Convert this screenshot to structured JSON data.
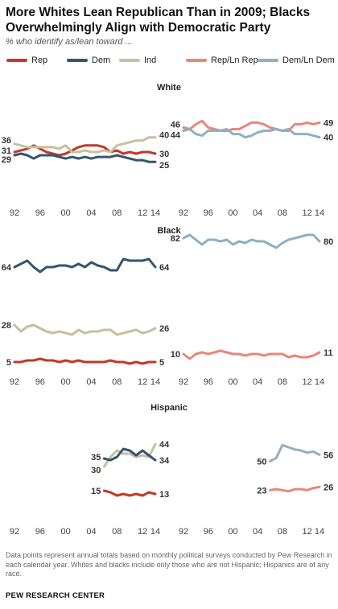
{
  "title": "More Whites Lean Republican Than in 2009; Blacks Overwhelmingly Align with Democratic Party",
  "subtitle": "% who identify as/lean toward ...",
  "note": "Data points represent annual totals based on monthly political surveys conducted by Pew Research in each calendar year. Whites and blacks include only those who are not Hispanic; Hispanics are of any race.",
  "source": "PEW RESEARCH CENTER",
  "colors": {
    "rep": "#c0392b",
    "dem": "#33566f",
    "ind": "#c9bf9f",
    "rep_ln": "#e8877b",
    "dem_ln": "#8fafc7"
  },
  "legend": [
    {
      "key": "rep",
      "label": "Rep"
    },
    {
      "key": "dem",
      "label": "Dem"
    },
    {
      "key": "ind",
      "label": "Ind"
    },
    {
      "key": "rep_ln",
      "label": "Rep/Ln Rep"
    },
    {
      "key": "dem_ln",
      "label": "Dem/Ln Dem"
    }
  ],
  "chart_data": [
    {
      "type": "line",
      "group": "White",
      "side": "left",
      "ylim": [
        0,
        60
      ],
      "x_ticks": [
        "92",
        "96",
        "00",
        "04",
        "08",
        "12",
        "14"
      ],
      "series": [
        {
          "key": "rep",
          "name": "Rep",
          "x": [
            1992,
            1993,
            1994,
            1995,
            1996,
            1997,
            1998,
            1999,
            2000,
            2001,
            2002,
            2003,
            2004,
            2005,
            2006,
            2007,
            2008,
            2009,
            2010,
            2011,
            2012,
            2013,
            2014
          ],
          "values": [
            31,
            32,
            33,
            35,
            33,
            31,
            30,
            29,
            30,
            32,
            34,
            35,
            35,
            35,
            34,
            31,
            32,
            30,
            31,
            30,
            31,
            31,
            30
          ],
          "start_label": "31",
          "end_label": "30"
        },
        {
          "key": "dem",
          "name": "Dem",
          "x": [
            1992,
            1993,
            1994,
            1995,
            1996,
            1997,
            1998,
            1999,
            2000,
            2001,
            2002,
            2003,
            2004,
            2005,
            2006,
            2007,
            2008,
            2009,
            2010,
            2011,
            2012,
            2013,
            2014
          ],
          "values": [
            29,
            30,
            29,
            27,
            29,
            29,
            29,
            28,
            27,
            28,
            27,
            28,
            27,
            28,
            28,
            28,
            29,
            28,
            27,
            26,
            26,
            25,
            25
          ],
          "start_label": "29",
          "end_label": "25"
        },
        {
          "key": "ind",
          "name": "Ind",
          "x": [
            1992,
            1993,
            1994,
            1995,
            1996,
            1997,
            1998,
            1999,
            2000,
            2001,
            2002,
            2003,
            2004,
            2005,
            2006,
            2007,
            2008,
            2009,
            2010,
            2011,
            2012,
            2013,
            2014
          ],
          "values": [
            36,
            35,
            34,
            34,
            34,
            34,
            34,
            33,
            35,
            31,
            31,
            32,
            31,
            31,
            32,
            31,
            35,
            36,
            37,
            38,
            38,
            40,
            40
          ],
          "start_label": "36",
          "end_label": "40"
        }
      ]
    },
    {
      "type": "line",
      "group": "White",
      "side": "right",
      "ylim": [
        0,
        60
      ],
      "x_ticks": [
        "92",
        "96",
        "00",
        "04",
        "08",
        "12",
        "14"
      ],
      "series": [
        {
          "key": "rep_ln",
          "name": "Rep/Ln Rep",
          "x": [
            1992,
            1993,
            1994,
            1995,
            1996,
            1997,
            1998,
            1999,
            2000,
            2001,
            2002,
            2003,
            2004,
            2005,
            2006,
            2007,
            2008,
            2009,
            2010,
            2011,
            2012,
            2013,
            2014
          ],
          "values": [
            46,
            45,
            48,
            50,
            46,
            45,
            44,
            44,
            45,
            45,
            47,
            49,
            49,
            48,
            46,
            45,
            44,
            44,
            48,
            48,
            49,
            48,
            49
          ],
          "start_label": "46",
          "end_label": "49"
        },
        {
          "key": "dem_ln",
          "name": "Dem/Ln Dem",
          "x": [
            1992,
            1993,
            1994,
            1995,
            1996,
            1997,
            1998,
            1999,
            2000,
            2001,
            2002,
            2003,
            2004,
            2005,
            2006,
            2007,
            2008,
            2009,
            2010,
            2011,
            2012,
            2013,
            2014
          ],
          "values": [
            44,
            45,
            42,
            41,
            44,
            44,
            44,
            45,
            42,
            42,
            40,
            41,
            43,
            44,
            44,
            45,
            44,
            45,
            42,
            42,
            42,
            41,
            40
          ],
          "start_label": "44",
          "end_label": "40"
        }
      ]
    },
    {
      "type": "line",
      "group": "Black",
      "side": "left",
      "ylim": [
        0,
        90
      ],
      "x_ticks": [
        "92",
        "96",
        "00",
        "04",
        "08",
        "12",
        "14"
      ],
      "series": [
        {
          "key": "dem",
          "name": "Dem",
          "x": [
            1992,
            1993,
            1994,
            1995,
            1996,
            1997,
            1998,
            1999,
            2000,
            2001,
            2002,
            2003,
            2004,
            2005,
            2006,
            2007,
            2008,
            2009,
            2010,
            2011,
            2012,
            2013,
            2014
          ],
          "values": [
            64,
            66,
            68,
            64,
            61,
            64,
            64,
            65,
            65,
            64,
            66,
            64,
            67,
            65,
            64,
            62,
            62,
            69,
            68,
            68,
            68,
            69,
            64
          ],
          "start_label": "64",
          "end_label": "64"
        },
        {
          "key": "ind",
          "name": "Ind",
          "x": [
            1992,
            1993,
            1994,
            1995,
            1996,
            1997,
            1998,
            1999,
            2000,
            2001,
            2002,
            2003,
            2004,
            2005,
            2006,
            2007,
            2008,
            2009,
            2010,
            2011,
            2012,
            2013,
            2014
          ],
          "values": [
            28,
            24,
            27,
            28,
            26,
            24,
            23,
            24,
            23,
            22,
            25,
            23,
            24,
            24,
            25,
            25,
            22,
            23,
            24,
            25,
            23,
            24,
            26
          ],
          "start_label": "28",
          "end_label": "26"
        },
        {
          "key": "rep",
          "name": "Rep",
          "x": [
            1992,
            1993,
            1994,
            1995,
            1996,
            1997,
            1998,
            1999,
            2000,
            2001,
            2002,
            2003,
            2004,
            2005,
            2006,
            2007,
            2008,
            2009,
            2010,
            2011,
            2012,
            2013,
            2014
          ],
          "values": [
            5,
            5,
            6,
            6,
            7,
            6,
            6,
            5,
            6,
            5,
            6,
            5,
            5,
            5,
            5,
            6,
            5,
            5,
            4,
            5,
            4,
            5,
            5
          ],
          "start_label": "5",
          "end_label": "5"
        }
      ]
    },
    {
      "type": "line",
      "group": "Black",
      "side": "right",
      "ylim": [
        0,
        90
      ],
      "x_ticks": [
        "92",
        "96",
        "00",
        "04",
        "08",
        "12",
        "14"
      ],
      "series": [
        {
          "key": "dem_ln",
          "name": "Dem/Ln Dem",
          "x": [
            1992,
            1993,
            1994,
            1995,
            1996,
            1997,
            1998,
            1999,
            2000,
            2001,
            2002,
            2003,
            2004,
            2005,
            2006,
            2007,
            2008,
            2009,
            2010,
            2011,
            2012,
            2013,
            2014
          ],
          "values": [
            82,
            84,
            81,
            78,
            81,
            81,
            80,
            81,
            78,
            80,
            79,
            81,
            80,
            80,
            78,
            76,
            79,
            81,
            82,
            83,
            84,
            84,
            80
          ],
          "start_label": "82",
          "end_label": "80"
        },
        {
          "key": "rep_ln",
          "name": "Rep/Ln Rep",
          "x": [
            1992,
            1993,
            1994,
            1995,
            1996,
            1997,
            1998,
            1999,
            2000,
            2001,
            2002,
            2003,
            2004,
            2005,
            2006,
            2007,
            2008,
            2009,
            2010,
            2011,
            2012,
            2013,
            2014
          ],
          "values": [
            10,
            7,
            10,
            11,
            10,
            11,
            12,
            11,
            10,
            10,
            9,
            10,
            10,
            9,
            10,
            10,
            10,
            8,
            9,
            8,
            8,
            9,
            11
          ],
          "start_label": "10",
          "end_label": "11"
        }
      ]
    },
    {
      "type": "line",
      "group": "Hispanic",
      "side": "left",
      "ylim": [
        0,
        60
      ],
      "x_ticks": [
        "92",
        "96",
        "00",
        "04",
        "08",
        "12",
        "14"
      ],
      "series": [
        {
          "key": "ind",
          "name": "Ind",
          "x": [
            2006,
            2007,
            2008,
            2009,
            2010,
            2011,
            2012,
            2013,
            2014
          ],
          "values": [
            30,
            36,
            40,
            38,
            38,
            36,
            37,
            36,
            44
          ],
          "start_label": "30",
          "end_label": "44"
        },
        {
          "key": "dem",
          "name": "Dem",
          "x": [
            2006,
            2007,
            2008,
            2009,
            2010,
            2011,
            2012,
            2013,
            2014
          ],
          "values": [
            35,
            34,
            36,
            41,
            40,
            37,
            40,
            37,
            34
          ],
          "start_label": "35",
          "end_label": "34"
        },
        {
          "key": "rep",
          "name": "Rep",
          "x": [
            2006,
            2007,
            2008,
            2009,
            2010,
            2011,
            2012,
            2013,
            2014
          ],
          "values": [
            15,
            14,
            12,
            13,
            12,
            13,
            12,
            14,
            13
          ],
          "start_label": "15",
          "end_label": "13"
        }
      ]
    },
    {
      "type": "line",
      "group": "Hispanic",
      "side": "right",
      "ylim": [
        0,
        90
      ],
      "x_ticks": [
        "92",
        "96",
        "00",
        "04",
        "08",
        "12",
        "14"
      ],
      "series": [
        {
          "key": "dem_ln",
          "name": "Dem/Ln Dem",
          "x": [
            2006,
            2007,
            2008,
            2009,
            2010,
            2011,
            2012,
            2013,
            2014
          ],
          "values": [
            50,
            53,
            65,
            63,
            61,
            60,
            58,
            59,
            56
          ],
          "start_label": "50",
          "end_label": "56"
        },
        {
          "key": "rep_ln",
          "name": "Rep/Ln Rep",
          "x": [
            2006,
            2007,
            2008,
            2009,
            2010,
            2011,
            2012,
            2013,
            2014
          ],
          "values": [
            23,
            24,
            23,
            22,
            24,
            24,
            23,
            25,
            26
          ],
          "start_label": "23",
          "end_label": "26"
        }
      ]
    }
  ]
}
